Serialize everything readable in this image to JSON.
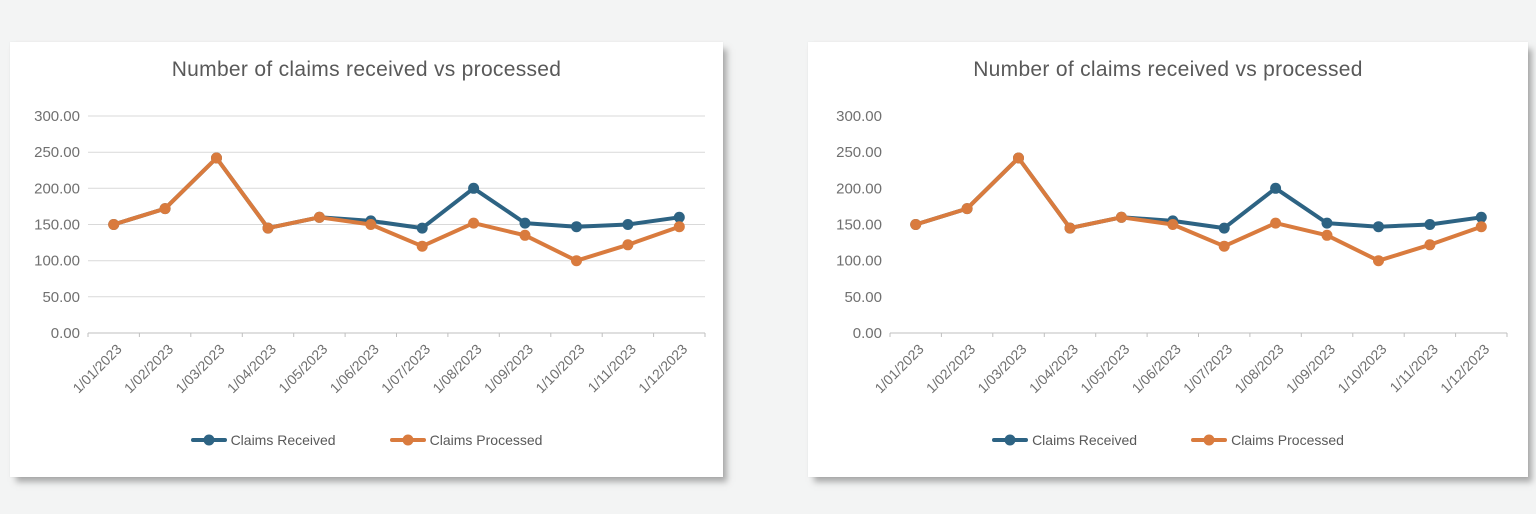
{
  "styles": {
    "page_background": "#f3f4f4",
    "card_background": "#ffffff",
    "title_color": "#595959",
    "tick_label_color": "#707070",
    "gridline_color": "#d9d9d9",
    "axis_line_color": "#bfbfbf",
    "received_color": "#2d6383",
    "processed_color": "#d97b3e"
  },
  "chart_data": [
    {
      "type": "line",
      "title": "Number of claims received vs processed",
      "categories": [
        "1/01/2023",
        "1/02/2023",
        "1/03/2023",
        "1/04/2023",
        "1/05/2023",
        "1/06/2023",
        "1/07/2023",
        "1/08/2023",
        "1/09/2023",
        "1/10/2023",
        "1/11/2023",
        "1/12/2023"
      ],
      "series": [
        {
          "name": "Claims Received",
          "color": "#2d6383",
          "values": [
            150,
            172,
            242,
            145,
            160,
            155,
            145,
            200,
            152,
            147,
            150,
            160
          ]
        },
        {
          "name": "Claims Processed",
          "color": "#d97b3e",
          "values": [
            150,
            172,
            242,
            145,
            160,
            150,
            120,
            152,
            135,
            100,
            122,
            147
          ]
        }
      ],
      "ylim": [
        0,
        300
      ],
      "ytick_step": 50,
      "ytick_decimals": 2,
      "grid": true,
      "legend_position": "bottom"
    },
    {
      "type": "line",
      "title": "Number of claims received vs processed",
      "categories": [
        "1/01/2023",
        "1/02/2023",
        "1/03/2023",
        "1/04/2023",
        "1/05/2023",
        "1/06/2023",
        "1/07/2023",
        "1/08/2023",
        "1/09/2023",
        "1/10/2023",
        "1/11/2023",
        "1/12/2023"
      ],
      "series": [
        {
          "name": "Claims Received",
          "color": "#2d6383",
          "values": [
            150,
            172,
            242,
            145,
            160,
            155,
            145,
            200,
            152,
            147,
            150,
            160
          ]
        },
        {
          "name": "Claims Processed",
          "color": "#d97b3e",
          "values": [
            150,
            172,
            242,
            145,
            160,
            150,
            120,
            152,
            135,
            100,
            122,
            147
          ]
        }
      ],
      "ylim": [
        0,
        300
      ],
      "ytick_step": 50,
      "ytick_decimals": 2,
      "grid": false,
      "legend_position": "bottom"
    }
  ]
}
